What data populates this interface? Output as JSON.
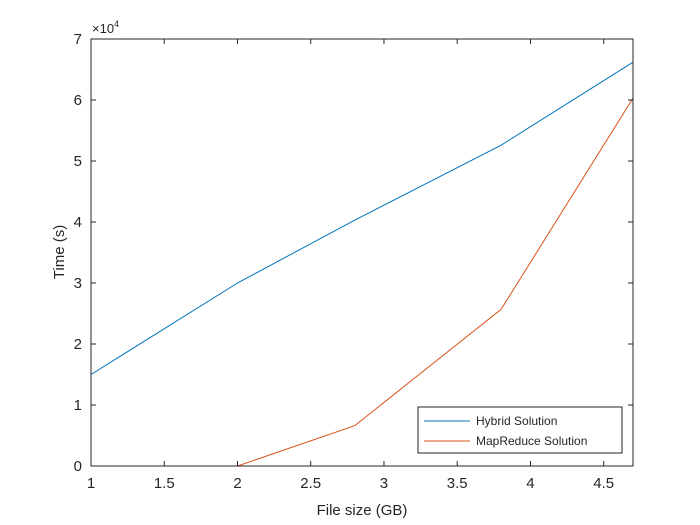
{
  "chart_data": {
    "type": "line",
    "title": "",
    "xlabel": "File size (GB)",
    "ylabel": "Time (s)",
    "xlim": [
      1,
      4.7
    ],
    "ylim": [
      0,
      70000
    ],
    "exponent_label": "×10",
    "exponent_power": "4",
    "xticks": [
      1,
      1.5,
      2,
      2.5,
      3,
      3.5,
      4,
      4.5
    ],
    "xtick_labels": [
      "1",
      "1.5",
      "2",
      "2.5",
      "3",
      "3.5",
      "4",
      "4.5"
    ],
    "yticks": [
      0,
      10000,
      20000,
      30000,
      40000,
      50000,
      60000,
      70000
    ],
    "ytick_labels": [
      "0",
      "1",
      "2",
      "3",
      "4",
      "5",
      "6",
      "7"
    ],
    "grid": false,
    "legend_position": "bottom-right",
    "series": [
      {
        "name": "Hybrid Solution",
        "color": "#0072BD",
        "x": [
          1,
          2,
          2.8,
          3.8,
          4.7
        ],
        "y": [
          15000,
          30000,
          40300,
          52600,
          66200
        ]
      },
      {
        "name": "MapReduce Solution",
        "color": "#D95319",
        "x": [
          1,
          2,
          2.8,
          3.8,
          4.7
        ],
        "y": [
          0,
          0,
          6600,
          25700,
          60300
        ]
      }
    ]
  }
}
